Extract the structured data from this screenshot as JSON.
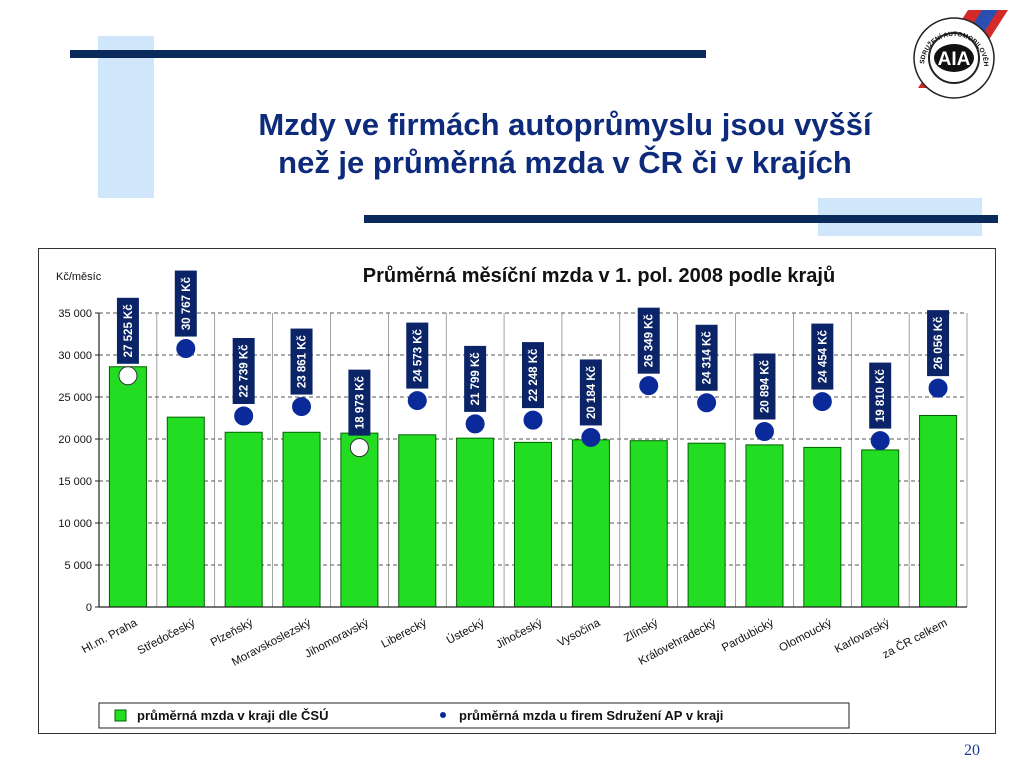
{
  "slide": {
    "title_line1": "Mzdy ve firmách autoprůmyslu jsou vyšší",
    "title_line2": "než je průměrná mzda v ČR či v krajích",
    "page_number": "20",
    "logo_text": "AIA",
    "logo_ring_text": "SDRUŽENÍ AUTOMOBILOVÉHO PRŮMYSLU"
  },
  "colors": {
    "title": "#0d2b7a",
    "deco_bar_dark": "#0b2a5c",
    "deco_bar_light": "#cfe6fb",
    "bar_fill": "#22dd22",
    "bar_edge": "#006400",
    "dot_fill": "#0a2a9a",
    "label_box": "#0b2468"
  },
  "chart_data": {
    "type": "bar",
    "title": "Průměrná měsíční mzda v 1. pol. 2008 podle krajů",
    "ylabel": "Kč/měsíc",
    "xlabel": "",
    "ylim": [
      0,
      35000
    ],
    "yticks": [
      0,
      5000,
      10000,
      15000,
      20000,
      25000,
      30000,
      35000
    ],
    "ytick_labels": [
      "0",
      "5 000",
      "10 000",
      "15 000",
      "20 000",
      "25 000",
      "30 000",
      "35 000"
    ],
    "grid": "horizontal dashed",
    "legend_position": "bottom",
    "categories": [
      "Hl.m. Praha",
      "Středočeský",
      "Plzeňský",
      "Moravskoslezský",
      "Jihomoravský",
      "Liberecký",
      "Ústecký",
      "Jihočeský",
      "Vysočina",
      "Zlínský",
      "Královehradecký",
      "Pardubický",
      "Olomoucký",
      "Karlovarský",
      "za ČR celkem"
    ],
    "series": [
      {
        "name": "průměrná mzda v kraji dle ČSÚ",
        "kind": "bar",
        "values": [
          28600,
          22600,
          20800,
          20800,
          20700,
          20500,
          20100,
          19600,
          19900,
          19800,
          19500,
          19300,
          19000,
          18700,
          22800
        ]
      },
      {
        "name": "průměrná mzda u firem Sdružení AP v kraji",
        "kind": "dot",
        "values": [
          27525,
          30767,
          22739,
          23861,
          18973,
          24573,
          21799,
          22248,
          20184,
          26349,
          24314,
          20894,
          24454,
          19810,
          26056
        ],
        "labels": [
          "27 525 Kč",
          "30 767 Kč",
          "22 739 Kč",
          "23 861 Kč",
          "18 973 Kč",
          "24 573 Kč",
          "21 799 Kč",
          "22 248 Kč",
          "20 184 Kč",
          "26 349 Kč",
          "24 314 Kč",
          "20 894 Kč",
          "24 454 Kč",
          "19 810 Kč",
          "26 056 Kč"
        ],
        "hollow_points": [
          0,
          4
        ]
      }
    ]
  }
}
